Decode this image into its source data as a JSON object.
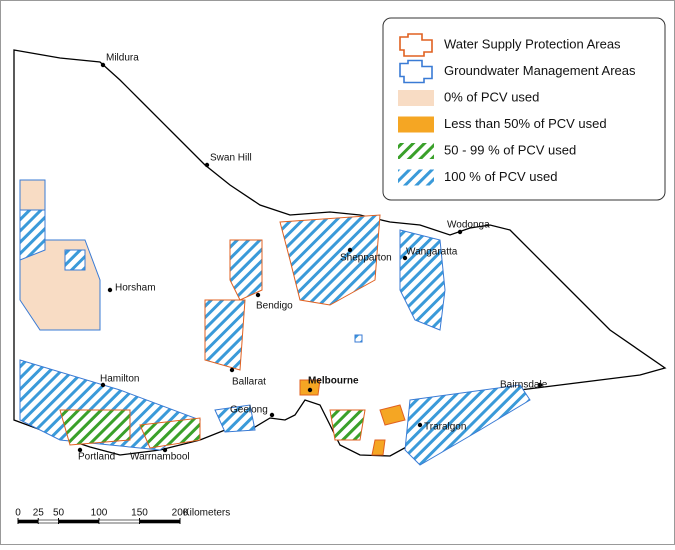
{
  "legend": {
    "items": [
      "Water Supply Protection Areas",
      "Groundwater Management Areas",
      "0% of PCV used",
      "Less than 50% of PCV used",
      "50 - 99 % of PCV used",
      "100 % of PCV used"
    ]
  },
  "places": [
    "Mildura",
    "Swan Hill",
    "Horsham",
    "Bendigo",
    "Shepparton",
    "Wodonga",
    "Wangaratta",
    "Ballarat",
    "Melbourne",
    "Hamilton",
    "Geelong",
    "Traralgon",
    "Bairnsdale",
    "Portland",
    "Warrnambool"
  ],
  "scale_bar": {
    "ticks": [
      0,
      25,
      50,
      100,
      150,
      200
    ],
    "unit": "Kilometers"
  }
}
